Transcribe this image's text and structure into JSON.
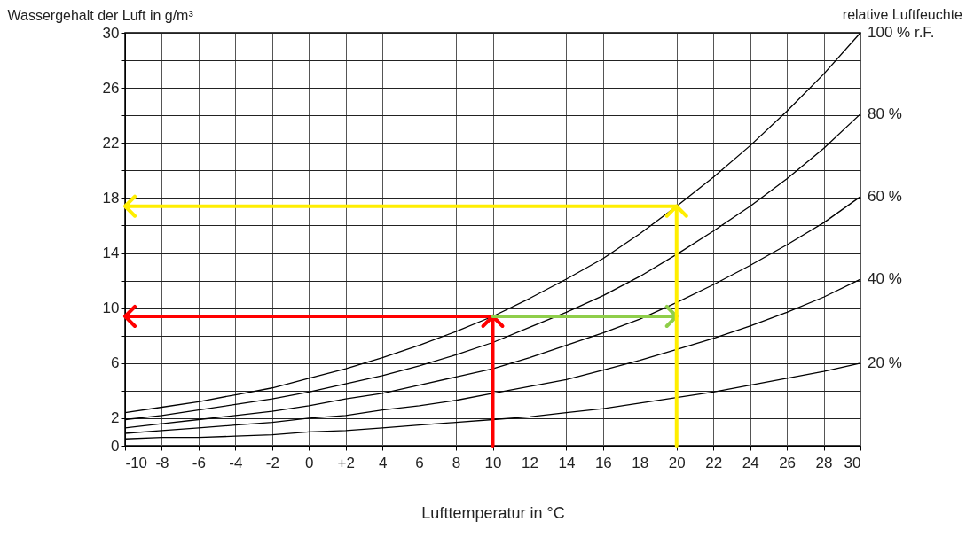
{
  "chart_data": {
    "type": "line",
    "xlabel": "Lufttemperatur in °C",
    "ylabel": "Wassergehalt der Luft in g/m³",
    "y2label": "relative Luftfeuchte",
    "x": [
      -10,
      -8,
      -6,
      -4,
      -2,
      0,
      2,
      4,
      6,
      8,
      10,
      12,
      14,
      16,
      18,
      20,
      22,
      24,
      26,
      28,
      30
    ],
    "xlim": [
      -10,
      30
    ],
    "xticks": [
      -10,
      -8,
      -6,
      -4,
      -2,
      0,
      {
        "value": 2,
        "label": "+2"
      },
      4,
      6,
      8,
      10,
      12,
      14,
      16,
      18,
      20,
      22,
      24,
      26,
      28,
      30
    ],
    "ylim": [
      0,
      30
    ],
    "yticks": [
      0,
      2,
      {
        "value": 4,
        "label": null
      },
      6,
      {
        "value": 8,
        "label": null
      },
      10,
      {
        "value": 12,
        "label": null
      },
      14,
      {
        "value": 16,
        "label": null
      },
      18,
      {
        "value": 20,
        "label": null
      },
      22,
      {
        "value": 24,
        "label": null
      },
      26,
      {
        "value": 28,
        "label": null
      },
      30
    ],
    "grid": true,
    "legend": false,
    "series": [
      {
        "name": "100 % r.F.",
        "color": "#000000",
        "values": [
          2.4,
          2.8,
          3.2,
          3.7,
          4.2,
          4.9,
          5.6,
          6.4,
          7.3,
          8.3,
          9.4,
          10.7,
          12.1,
          13.6,
          15.4,
          17.4,
          19.5,
          21.8,
          24.3,
          27.0,
          30.0
        ]
      },
      {
        "name": "80 %",
        "color": "#000000",
        "values": [
          1.9,
          2.2,
          2.6,
          3.0,
          3.4,
          3.9,
          4.5,
          5.1,
          5.8,
          6.6,
          7.5,
          8.6,
          9.7,
          10.9,
          12.3,
          13.9,
          15.6,
          17.4,
          19.4,
          21.6,
          24.1
        ]
      },
      {
        "name": "60 %",
        "color": "#000000",
        "values": [
          1.3,
          1.6,
          1.9,
          2.2,
          2.5,
          2.9,
          3.4,
          3.8,
          4.4,
          5.0,
          5.6,
          6.4,
          7.3,
          8.2,
          9.2,
          10.4,
          11.7,
          13.1,
          14.6,
          16.2,
          18.1
        ]
      },
      {
        "name": "40 %",
        "color": "#000000",
        "values": [
          0.9,
          1.1,
          1.3,
          1.5,
          1.7,
          2.0,
          2.2,
          2.6,
          2.9,
          3.3,
          3.8,
          4.3,
          4.8,
          5.5,
          6.2,
          7.0,
          7.8,
          8.7,
          9.7,
          10.8,
          12.1
        ]
      },
      {
        "name": "20 %",
        "color": "#000000",
        "values": [
          0.5,
          0.6,
          0.6,
          0.7,
          0.8,
          1.0,
          1.1,
          1.3,
          1.5,
          1.7,
          1.9,
          2.1,
          2.4,
          2.7,
          3.1,
          3.5,
          3.9,
          4.4,
          4.9,
          5.4,
          6.0
        ]
      },
      {
        "color": "#ff0000",
        "x": [
          10,
          -10
        ],
        "values": [
          9.4,
          9.4
        ]
      },
      {
        "color": "#8fce4a",
        "x": [
          10,
          20
        ],
        "values": [
          9.4,
          9.4
        ]
      },
      {
        "color": "#ffee00",
        "x": [
          20,
          -10
        ],
        "values": [
          17.4,
          17.4
        ]
      }
    ]
  }
}
